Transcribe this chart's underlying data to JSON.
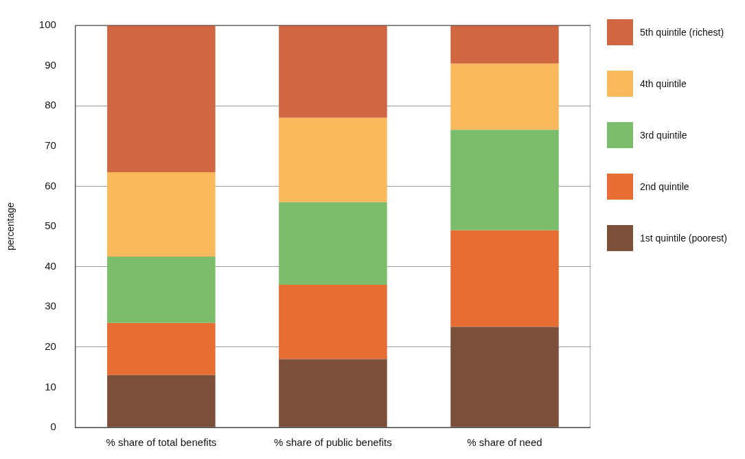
{
  "chart_data": {
    "type": "bar",
    "stacked": true,
    "ylabel": "percentage",
    "categories": [
      "% share of total benefits",
      "% share of public benefits",
      "% share of need"
    ],
    "series": [
      {
        "name": "1st quintile (poorest)",
        "color": "#7a503b",
        "values": [
          13,
          17,
          25
        ]
      },
      {
        "name": "2nd quintile",
        "color": "#e66e35",
        "values": [
          13,
          18.5,
          24
        ]
      },
      {
        "name": "3rd quintile",
        "color": "#7bbd6d",
        "values": [
          16.5,
          20.5,
          25
        ]
      },
      {
        "name": "4th quintile",
        "color": "#fbb95e",
        "values": [
          21,
          21,
          16.5
        ]
      },
      {
        "name": "5th quintile (richest)",
        "color": "#cf6743",
        "values": [
          36.5,
          23,
          9.5
        ]
      }
    ],
    "ylim": [
      0,
      100
    ],
    "yticks": [
      0,
      10,
      20,
      30,
      40,
      50,
      60,
      70,
      80,
      90,
      100
    ],
    "grid": "y",
    "legend": "right"
  }
}
